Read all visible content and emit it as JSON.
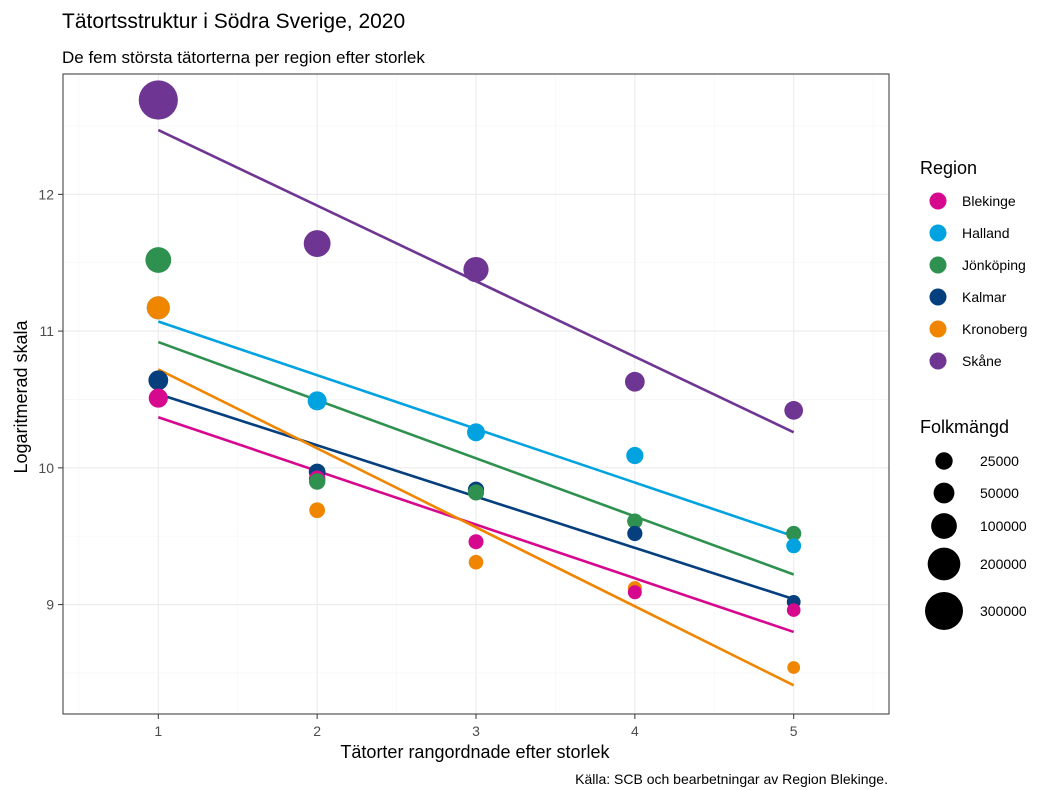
{
  "chart_data": {
    "type": "scatter",
    "title": "Tätortsstruktur i Södra Sverige, 2020",
    "subtitle": "De fem största tätorterna per region efter storlek",
    "xlabel": "Tätorter rangordnade efter storlek",
    "ylabel": "Logaritmerad skala",
    "caption": "Källa: SCB och bearbetningar av Region Blekinge.",
    "xlim": [
      0.4,
      5.6
    ],
    "ylim": [
      8.2,
      12.88
    ],
    "x_ticks": [
      1,
      2,
      3,
      4,
      5
    ],
    "y_ticks": [
      9,
      10,
      11,
      12
    ],
    "grid": true,
    "legend_position": "right",
    "color_legend_title": "Region",
    "size_legend_title": "Folkmängd",
    "size_legend": [
      25000,
      50000,
      100000,
      200000,
      300000
    ],
    "series": [
      {
        "name": "Blekinge",
        "color": "#D6088E",
        "x": [
          1,
          2,
          3,
          4,
          5
        ],
        "y": [
          10.51,
          9.92,
          9.46,
          9.09,
          8.96
        ],
        "trend": [
          10.37,
          8.8
        ]
      },
      {
        "name": "Halland",
        "color": "#00A3E0",
        "x": [
          1,
          2,
          3,
          4,
          5
        ],
        "y": [
          11.17,
          10.49,
          10.26,
          10.09,
          9.43
        ],
        "trend": [
          11.07,
          9.5
        ]
      },
      {
        "name": "Jönköping",
        "color": "#2E9150",
        "x": [
          1,
          2,
          3,
          4,
          5
        ],
        "y": [
          11.52,
          9.9,
          9.82,
          9.61,
          9.52
        ],
        "trend": [
          10.92,
          9.22
        ]
      },
      {
        "name": "Kalmar",
        "color": "#053F7D",
        "x": [
          1,
          2,
          3,
          4,
          5
        ],
        "y": [
          10.64,
          9.97,
          9.84,
          9.52,
          9.02
        ],
        "trend": [
          10.54,
          9.04
        ]
      },
      {
        "name": "Kronoberg",
        "color": "#F08600",
        "x": [
          1,
          2,
          3,
          4,
          5
        ],
        "y": [
          11.17,
          9.69,
          9.31,
          9.12,
          8.54
        ],
        "trend": [
          10.72,
          8.41
        ]
      },
      {
        "name": "Skåne",
        "color": "#6F3593",
        "x": [
          1,
          2,
          3,
          4,
          5
        ],
        "y": [
          12.69,
          11.64,
          11.45,
          10.63,
          10.42
        ],
        "trend": [
          12.47,
          10.26
        ]
      }
    ]
  }
}
